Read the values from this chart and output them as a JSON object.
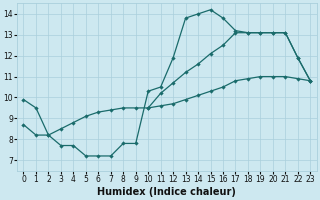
{
  "xlabel": "Humidex (Indice chaleur)",
  "xlim": [
    -0.5,
    23.5
  ],
  "ylim": [
    6.5,
    14.5
  ],
  "xticks": [
    0,
    1,
    2,
    3,
    4,
    5,
    6,
    7,
    8,
    9,
    10,
    11,
    12,
    13,
    14,
    15,
    16,
    17,
    18,
    19,
    20,
    21,
    22,
    23
  ],
  "yticks": [
    7,
    8,
    9,
    10,
    11,
    12,
    13,
    14
  ],
  "bg_color": "#cde8f0",
  "grid_color": "#aacfdc",
  "line_color": "#1a6b6b",
  "marker": "D",
  "markersize": 2.2,
  "linewidth": 0.9,
  "font_color": "#111111",
  "tick_fontsize": 5.5,
  "xlabel_fontsize": 7,
  "curve1_x": [
    0,
    1,
    2,
    3,
    4,
    5,
    6,
    7,
    8,
    9,
    10,
    11,
    12,
    13,
    14,
    15,
    16,
    17,
    18,
    19,
    20,
    21,
    22,
    23
  ],
  "curve1_y": [
    9.9,
    9.5,
    8.2,
    7.7,
    7.7,
    7.2,
    7.2,
    7.2,
    7.8,
    7.8,
    10.3,
    10.5,
    11.9,
    13.8,
    14.0,
    14.2,
    13.8,
    13.2,
    13.1,
    13.1,
    13.1,
    13.1,
    11.9,
    10.8
  ],
  "curve2_x": [
    0,
    1,
    2,
    3,
    4,
    5,
    6,
    7,
    8,
    9,
    10,
    11,
    12,
    13,
    14,
    15,
    16,
    17,
    18,
    19,
    20,
    21,
    22,
    23
  ],
  "curve2_y": [
    8.7,
    8.2,
    8.2,
    8.5,
    8.8,
    9.1,
    9.3,
    9.4,
    9.5,
    9.5,
    9.5,
    9.6,
    9.7,
    9.9,
    10.1,
    10.3,
    10.5,
    10.8,
    10.9,
    11.0,
    11.0,
    11.0,
    10.9,
    10.8
  ],
  "curve3_x": [
    10,
    11,
    12,
    13,
    14,
    15,
    16,
    17,
    18,
    19,
    20,
    21,
    22,
    23
  ],
  "curve3_y": [
    9.5,
    10.2,
    10.7,
    11.2,
    11.6,
    12.1,
    12.5,
    13.1,
    13.1,
    13.1,
    13.1,
    13.1,
    11.9,
    10.8
  ]
}
